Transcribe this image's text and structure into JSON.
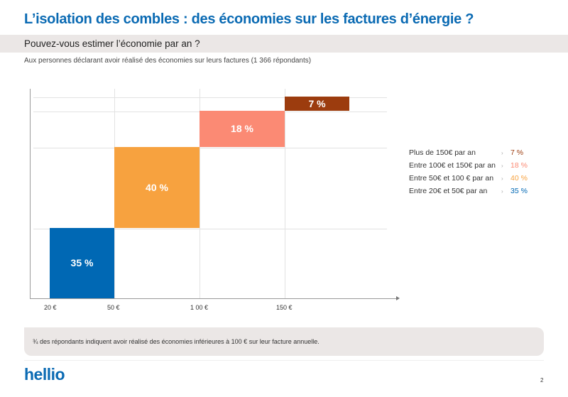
{
  "title": "L’isolation des combles : des économies sur les factures d’énergie ?",
  "question": "Pouvez-vous estimer l’économie par an ?",
  "subtitle": "Aux personnes déclarant avoir réalisé des économies sur leurs factures (1 366 répondants)",
  "chart_data": {
    "type": "bar",
    "categories": [
      "Entre 20€ et 50€ par an",
      "Entre 50€ et 100 € par an",
      "Entre 100€ et 150€ par an",
      "Plus de 150€ par an"
    ],
    "values": [
      35,
      40,
      18,
      7
    ],
    "labels": [
      "35 %",
      "40 %",
      "18 %",
      "7 %"
    ],
    "colors": [
      "#0068b4",
      "#f7a23f",
      "#fb8a74",
      "#9c3c0e"
    ],
    "x_ticks": [
      "20 €",
      "50 €",
      "1 00 €",
      "150 €"
    ],
    "legend": [
      {
        "label": "Plus de 150€ par an",
        "value": "7 %",
        "color": "#9c3c0e"
      },
      {
        "label": "Entre 100€ et 150€ par an",
        "value": "18 %",
        "color": "#fb8a74"
      },
      {
        "label": "Entre 50€ et 100 € par an",
        "value": "40 %",
        "color": "#f7a23f"
      },
      {
        "label": "Entre 20€ et 50€ par an",
        "value": "35 %",
        "color": "#0068b4"
      }
    ],
    "legend_separator": "›",
    "legend_position": "right"
  },
  "note": "¾ des répondants indiquent avoir réalisé des économies inférieures à 100 € sur leur facture annuelle.",
  "logo": "hellio",
  "page_number": "2"
}
